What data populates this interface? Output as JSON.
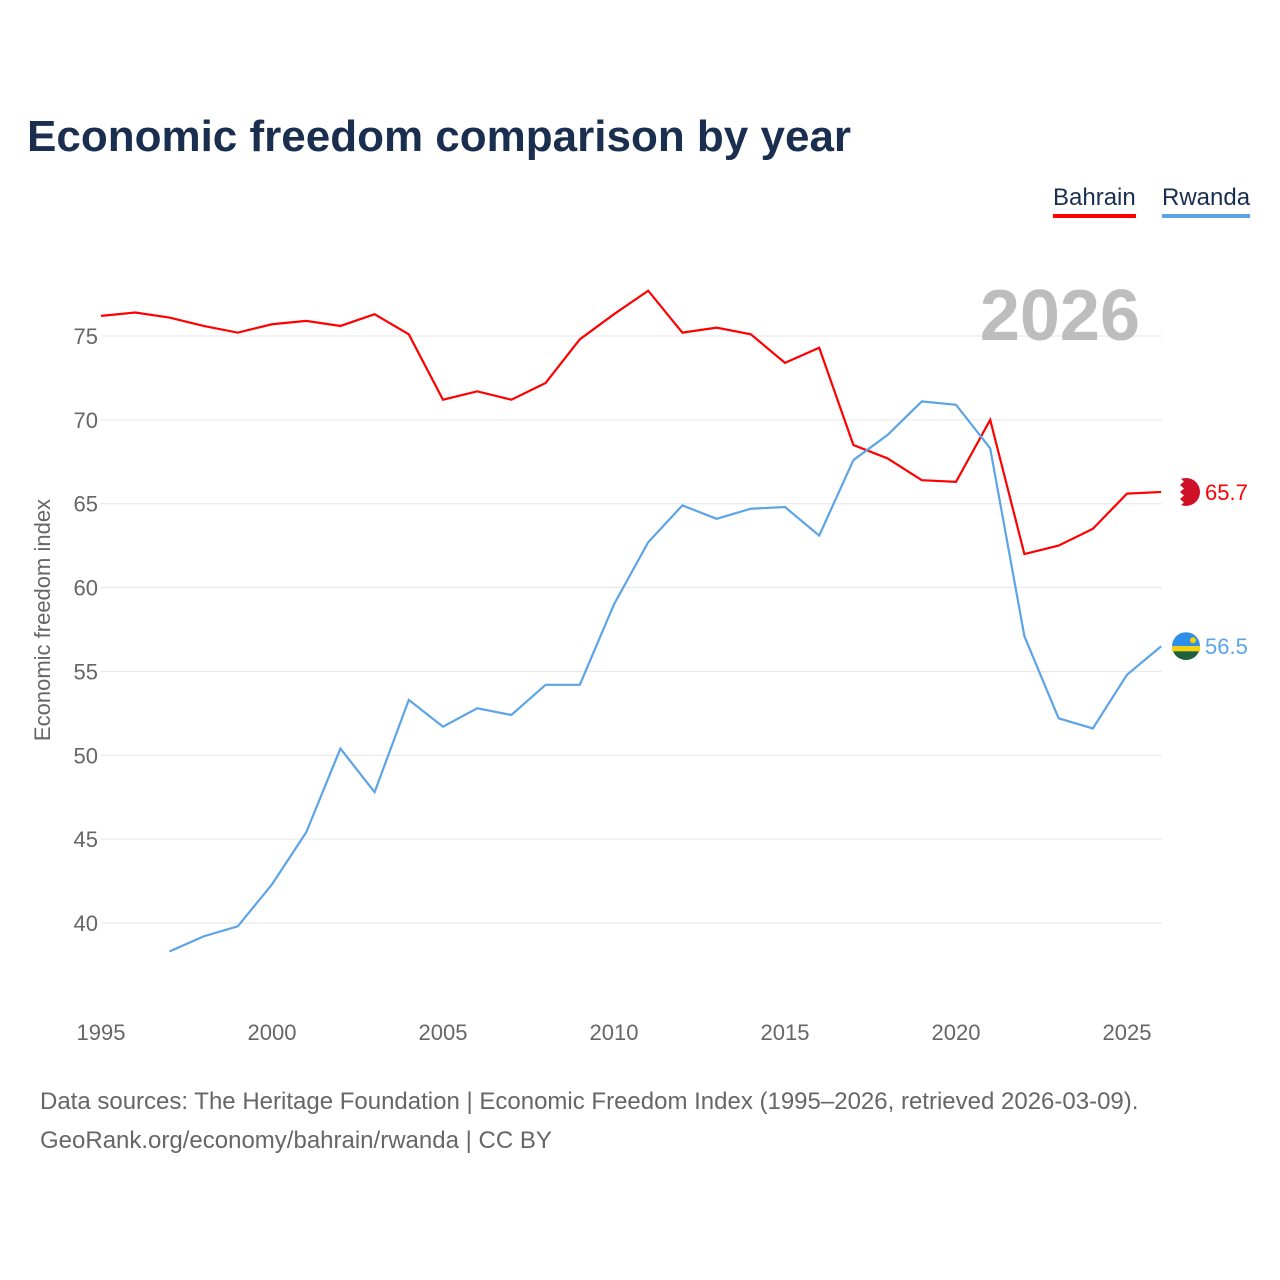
{
  "chart_data": {
    "type": "line",
    "title": "Economic freedom comparison by year",
    "xlabel": "",
    "ylabel": "Economic freedom index",
    "xlim": [
      1995,
      2026
    ],
    "ylim": [
      35,
      79
    ],
    "x_ticks": [
      1995,
      2000,
      2005,
      2010,
      2015,
      2020,
      2025
    ],
    "y_ticks": [
      40,
      45,
      50,
      55,
      60,
      65,
      70,
      75
    ],
    "grid": true,
    "legend_position": "top-right",
    "year_watermark": "2026",
    "series": [
      {
        "name": "Bahrain",
        "color": "#ff0000",
        "end_label": "65.7",
        "x": [
          1995,
          1996,
          1997,
          1998,
          1999,
          2000,
          2001,
          2002,
          2003,
          2004,
          2005,
          2006,
          2007,
          2008,
          2009,
          2010,
          2011,
          2012,
          2013,
          2014,
          2015,
          2016,
          2017,
          2018,
          2019,
          2020,
          2021,
          2022,
          2023,
          2024,
          2025,
          2026
        ],
        "values": [
          76.2,
          76.4,
          76.1,
          75.6,
          75.2,
          75.7,
          75.9,
          75.6,
          76.3,
          75.1,
          71.2,
          71.7,
          71.2,
          72.2,
          74.8,
          76.3,
          77.7,
          75.2,
          75.5,
          75.1,
          73.4,
          74.3,
          68.5,
          67.7,
          66.4,
          66.3,
          70.0,
          62.0,
          62.5,
          63.5,
          65.6,
          65.7
        ]
      },
      {
        "name": "Rwanda",
        "color": "#5ba4e8",
        "end_label": "56.5",
        "x": [
          1997,
          1998,
          1999,
          2000,
          2001,
          2002,
          2003,
          2004,
          2005,
          2006,
          2007,
          2008,
          2009,
          2010,
          2011,
          2012,
          2013,
          2014,
          2015,
          2016,
          2017,
          2018,
          2019,
          2020,
          2021,
          2022,
          2023,
          2024,
          2025,
          2026
        ],
        "values": [
          38.3,
          39.2,
          39.8,
          42.3,
          45.4,
          50.4,
          47.8,
          53.3,
          51.7,
          52.8,
          52.4,
          54.2,
          54.2,
          59.0,
          62.7,
          64.9,
          64.1,
          64.7,
          64.8,
          63.1,
          67.6,
          69.1,
          71.1,
          70.9,
          68.3,
          57.1,
          52.2,
          51.6,
          54.8,
          56.5
        ]
      }
    ]
  },
  "sources": {
    "line1": "Data sources: The Heritage Foundation | Economic Freedom Index (1995–2026, retrieved 2026-03-09).",
    "line2": "GeoRank.org/economy/bahrain/rwanda | CC BY"
  }
}
